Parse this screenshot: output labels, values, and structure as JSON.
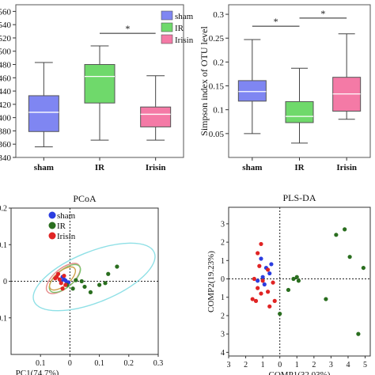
{
  "chart_data": [
    {
      "type": "box",
      "panel": "top-left",
      "ylim": [
        340,
        570
      ],
      "yticks": [
        340,
        360,
        380,
        400,
        420,
        440,
        460,
        480,
        500,
        520,
        540,
        560
      ],
      "categories": [
        "sham",
        "IR",
        "Irisin"
      ],
      "colors": [
        "#7f86f2",
        "#6fd96b",
        "#f47aa6"
      ],
      "boxes": [
        {
          "min": 356,
          "q1": 379,
          "median": 408,
          "q3": 433,
          "max": 483
        },
        {
          "min": 366,
          "q1": 422,
          "median": 462,
          "q3": 480,
          "max": 508
        },
        {
          "min": 366,
          "q1": 386,
          "median": 405,
          "q3": 416,
          "max": 463
        }
      ],
      "legend": [
        "sham",
        "IR",
        "Irisin"
      ],
      "legend_position": "top-right",
      "significance": [
        {
          "from": 1,
          "to": 2,
          "label": "*",
          "y": 527
        }
      ]
    },
    {
      "type": "box",
      "panel": "top-right",
      "ylabel": "Simpson index of OTU level",
      "ylim": [
        0,
        0.32
      ],
      "yticks": [
        0.05,
        0.1,
        0.15,
        0.2,
        0.25,
        0.3
      ],
      "ytick_labels": [
        "0.05",
        "0.1",
        "0.15",
        "0.2",
        "0.25",
        "0.3"
      ],
      "categories": [
        "sham",
        "IR",
        "Irisin"
      ],
      "colors": [
        "#7f86f2",
        "#6fd96b",
        "#f47aa6"
      ],
      "boxes": [
        {
          "min": 0.05,
          "q1": 0.118,
          "median": 0.138,
          "q3": 0.161,
          "max": 0.247
        },
        {
          "min": 0.03,
          "q1": 0.073,
          "median": 0.086,
          "q3": 0.117,
          "max": 0.187
        },
        {
          "min": 0.08,
          "q1": 0.097,
          "median": 0.133,
          "q3": 0.168,
          "max": 0.259
        }
      ],
      "significance": [
        {
          "from": 0,
          "to": 1,
          "label": "*",
          "y": 0.275
        },
        {
          "from": 1,
          "to": 2,
          "label": "*",
          "y": 0.292
        }
      ]
    },
    {
      "type": "scatter",
      "panel": "bottom-left",
      "title": "PCoA",
      "xlabel": "PC1(74.7%)",
      "xlim": [
        -0.2,
        0.3
      ],
      "ylim": [
        -0.2,
        0.2
      ],
      "xticks": [
        -0.1,
        0,
        0.1,
        0.2,
        0.3
      ],
      "xtick_labels": [
        "0.1",
        "0",
        "0.1",
        "0.2",
        "0.3"
      ],
      "yticks": [
        0.2,
        0.1,
        0,
        -0.1
      ],
      "ytick_labels": [
        "0.2",
        "0.1",
        "0",
        "0.1"
      ],
      "legend": [
        "sham",
        "IR",
        "Irisin"
      ],
      "legend_position": "top-left",
      "series": [
        {
          "name": "sham",
          "color": "#2b3de0",
          "points": [
            [
              -0.02,
              0.005
            ],
            [
              -0.01,
              -0.005
            ],
            [
              -0.025,
              0.012
            ],
            [
              -0.015,
              0.002
            ],
            [
              -0.005,
              -0.003
            ],
            [
              -0.03,
              0.0
            ]
          ]
        },
        {
          "name": "IR",
          "color": "#2a6e1f",
          "points": [
            [
              0.02,
              0.003
            ],
            [
              0.05,
              -0.015
            ],
            [
              0.07,
              -0.03
            ],
            [
              0.1,
              -0.01
            ],
            [
              0.13,
              0.02
            ],
            [
              0.16,
              0.04
            ],
            [
              0.04,
              0.0
            ],
            [
              0.01,
              -0.02
            ],
            [
              0.12,
              -0.005
            ],
            [
              -0.01,
              -0.01
            ]
          ]
        },
        {
          "name": "Irisin",
          "color": "#e02424",
          "points": [
            [
              -0.04,
              0.02
            ],
            [
              -0.035,
              0.005
            ],
            [
              -0.03,
              -0.005
            ],
            [
              -0.045,
              0.012
            ],
            [
              -0.02,
              0.015
            ],
            [
              -0.05,
              0.008
            ],
            [
              -0.015,
              -0.01
            ],
            [
              -0.025,
              -0.02
            ]
          ]
        }
      ]
    },
    {
      "type": "scatter",
      "panel": "bottom-right",
      "title": "PLS-DA",
      "xlabel": "COMP1(32.03%)",
      "ylabel": "COMP2(19.23%)",
      "xlim": [
        -3,
        5.3
      ],
      "ylim": [
        -4.2,
        3.9
      ],
      "xticks": [
        -3,
        -2,
        -1,
        0,
        1,
        2,
        3,
        4,
        5
      ],
      "xtick_labels": [
        "3",
        "2",
        "1",
        "0",
        "1",
        "2",
        "3",
        "4",
        "5"
      ],
      "yticks": [
        3,
        2,
        1,
        0,
        -1,
        -2,
        -3,
        -4
      ],
      "ytick_labels": [
        "3",
        "2",
        "1",
        "0",
        "1",
        "2",
        "3",
        "4"
      ],
      "series": [
        {
          "name": "sham",
          "color": "#2b3de0",
          "points": [
            [
              -1.1,
              1.1
            ],
            [
              -0.8,
              0.6
            ],
            [
              -0.6,
              0.3
            ],
            [
              -1.0,
              0.1
            ],
            [
              -0.5,
              0.8
            ],
            [
              -1.3,
              -0.1
            ],
            [
              -0.9,
              -0.3
            ]
          ]
        },
        {
          "name": "IR",
          "color": "#2a6e1f",
          "points": [
            [
              3.8,
              2.7
            ],
            [
              4.1,
              1.2
            ],
            [
              4.9,
              0.6
            ],
            [
              3.3,
              2.4
            ],
            [
              0.8,
              0.0
            ],
            [
              1.1,
              -0.1
            ],
            [
              0.5,
              -0.6
            ],
            [
              2.7,
              -1.1
            ],
            [
              4.6,
              -3.0
            ],
            [
              1.0,
              0.1
            ],
            [
              0.0,
              -1.9
            ]
          ]
        },
        {
          "name": "Irisin",
          "color": "#e02424",
          "points": [
            [
              -1.1,
              1.9
            ],
            [
              -1.3,
              1.4
            ],
            [
              -1.2,
              0.7
            ],
            [
              -0.7,
              0.5
            ],
            [
              -1.5,
              0.0
            ],
            [
              -1.0,
              -0.1
            ],
            [
              -1.3,
              -0.5
            ],
            [
              -0.7,
              -0.7
            ],
            [
              -0.4,
              -0.2
            ],
            [
              -1.6,
              -1.1
            ],
            [
              -1.4,
              -1.2
            ],
            [
              -0.3,
              -1.2
            ],
            [
              -0.6,
              -1.5
            ],
            [
              -1.1,
              -0.8
            ]
          ]
        }
      ]
    }
  ]
}
